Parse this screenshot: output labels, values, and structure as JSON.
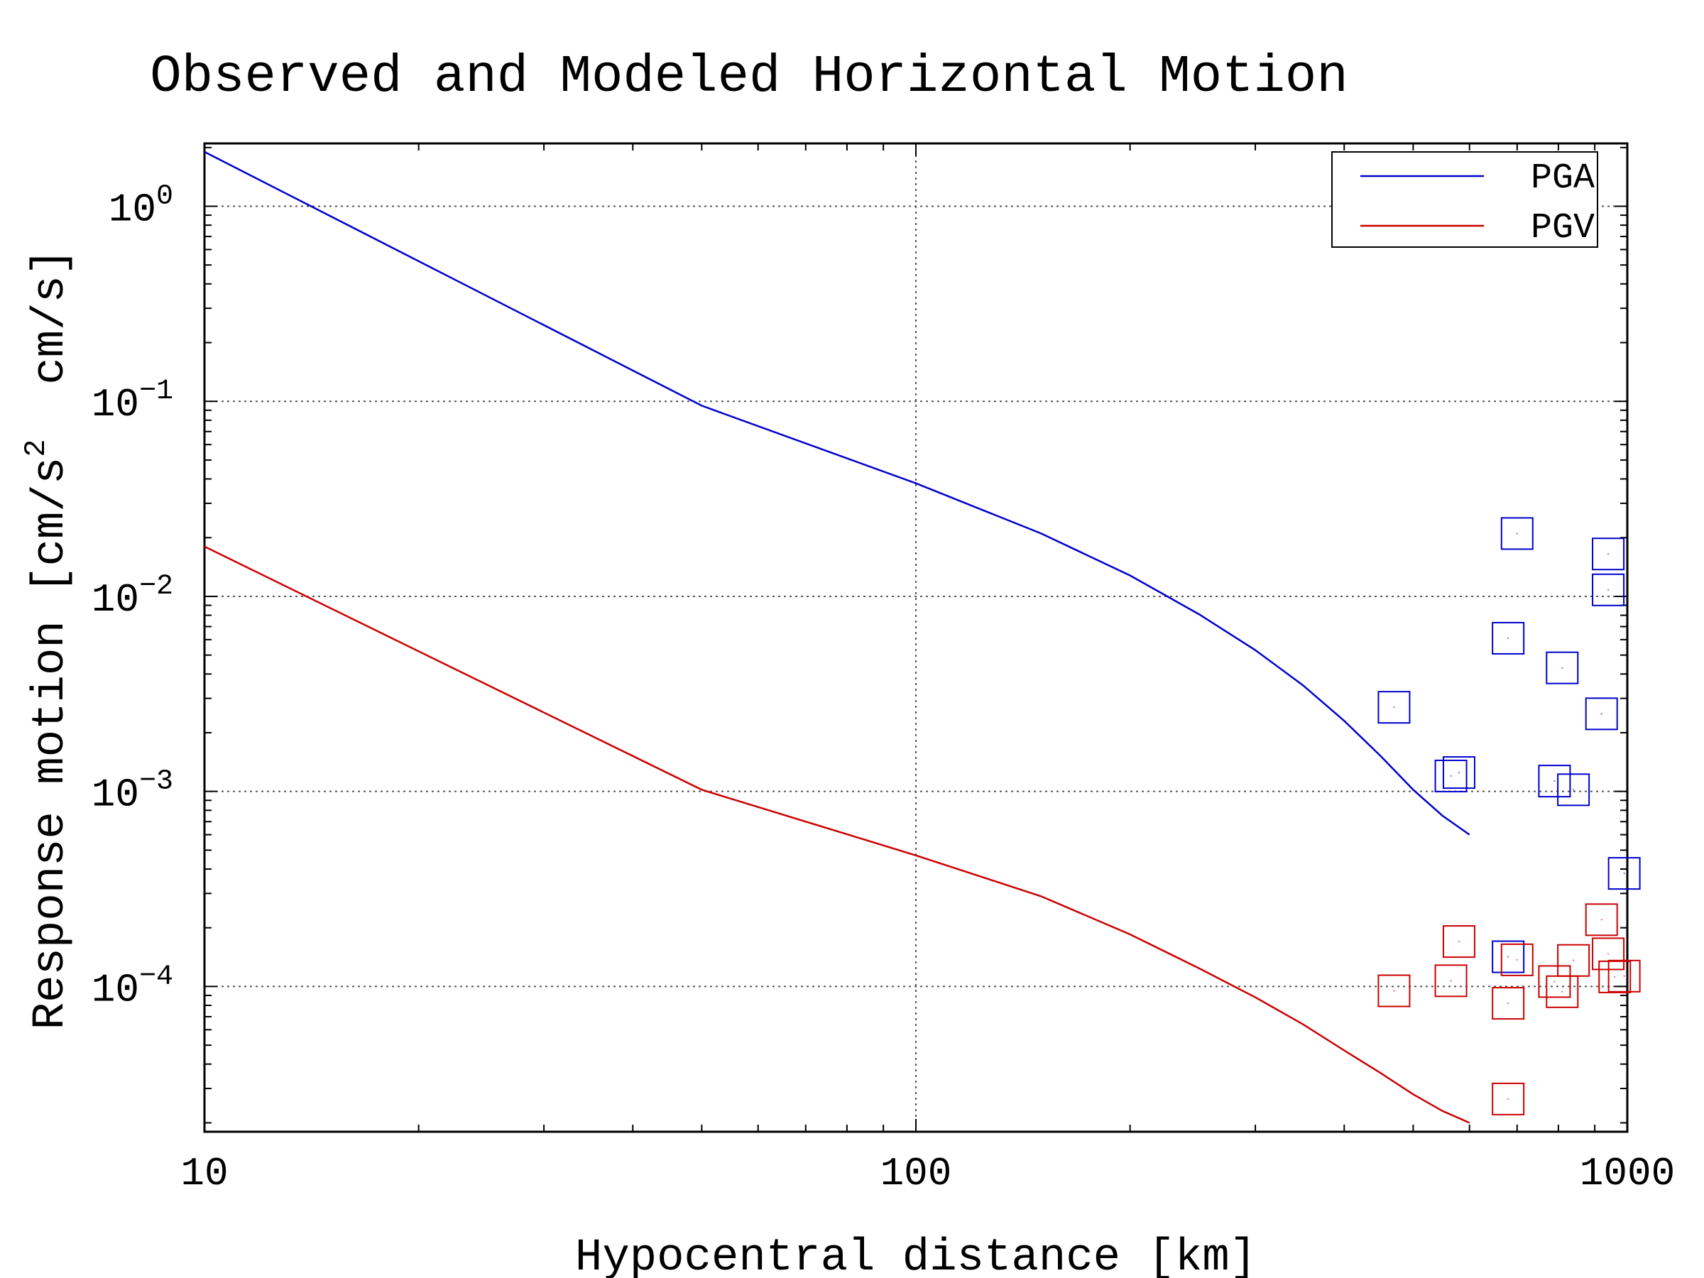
{
  "chart_data": {
    "type": "line",
    "title": "Observed and Modeled Horizontal Motion",
    "xlabel": "Hypocentral distance [km]",
    "ylabel": {
      "prefix": "Response motion [cm/s",
      "superscript": "2",
      "suffix": "  cm/s]"
    },
    "x_scale": "log",
    "y_scale": "log",
    "xlim": [
      10,
      1000
    ],
    "ylim": [
      1.8e-05,
      2.1
    ],
    "grid": true,
    "legend_position": "top-right",
    "x_ticks": [
      {
        "value": 10,
        "label": "10"
      },
      {
        "value": 100,
        "label": "100"
      },
      {
        "value": 1000,
        "label": "1000"
      }
    ],
    "y_ticks": [
      {
        "value": 1,
        "base": "10",
        "exp": "0"
      },
      {
        "value": 0.1,
        "base": "10",
        "exp": "−1"
      },
      {
        "value": 0.01,
        "base": "10",
        "exp": "−2"
      },
      {
        "value": 0.001,
        "base": "10",
        "exp": "−3"
      },
      {
        "value": 0.0001,
        "base": "10",
        "exp": "−4"
      }
    ],
    "series": [
      {
        "name": "PGA",
        "kind": "model",
        "color": "#0000cc",
        "x": [
          10,
          50,
          100,
          150,
          200,
          250,
          300,
          350,
          400,
          450,
          500,
          550,
          600
        ],
        "y": [
          1.9,
          0.095,
          0.038,
          0.021,
          0.0128,
          0.0081,
          0.0053,
          0.0035,
          0.0023,
          0.00152,
          0.00102,
          0.00075,
          0.0006
        ]
      },
      {
        "name": "PGV",
        "kind": "model",
        "color": "#cc0000",
        "x": [
          10,
          50,
          100,
          150,
          200,
          250,
          300,
          350,
          400,
          450,
          500,
          550,
          600
        ],
        "y": [
          0.018,
          0.00102,
          0.00047,
          0.00029,
          0.000185,
          0.000124,
          8.8e-05,
          6.4e-05,
          4.7e-05,
          3.6e-05,
          2.8e-05,
          2.3e-05,
          2e-05
        ]
      }
    ],
    "observations": [
      {
        "series": "PGA",
        "color": "#0000cc",
        "marker": "square",
        "x": [
          700,
          940,
          940,
          680,
          810,
          470,
          565,
          580,
          790,
          840,
          920,
          990,
          680
        ],
        "y": [
          0.021,
          0.0165,
          0.0108,
          0.0061,
          0.0043,
          0.0027,
          0.0012,
          0.00125,
          0.00113,
          0.00102,
          0.0025,
          0.00038,
          0.000142
        ]
      },
      {
        "series": "PGV",
        "color": "#cc0000",
        "marker": "square",
        "x": [
          470,
          565,
          580,
          680,
          700,
          790,
          810,
          840,
          920,
          940,
          960,
          990,
          680
        ],
        "y": [
          9.5e-05,
          0.000107,
          0.00017,
          8.2e-05,
          0.000137,
          0.000106,
          9.4e-05,
          0.000136,
          0.00022,
          0.000147,
          0.000112,
          0.000113,
          2.65e-05
        ]
      }
    ]
  }
}
